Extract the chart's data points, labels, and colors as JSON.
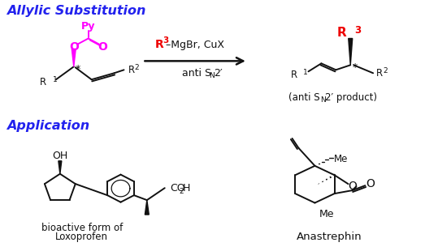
{
  "bg": "#ffffff",
  "blue": "#2222ee",
  "magenta": "#ff00ff",
  "red": "#ee0000",
  "black": "#111111",
  "title1": "Allylic Substitution",
  "title2": "Application",
  "loxo1": "bioactive form of",
  "loxo2": "Loxoprofen",
  "anast": "Anastrephin"
}
